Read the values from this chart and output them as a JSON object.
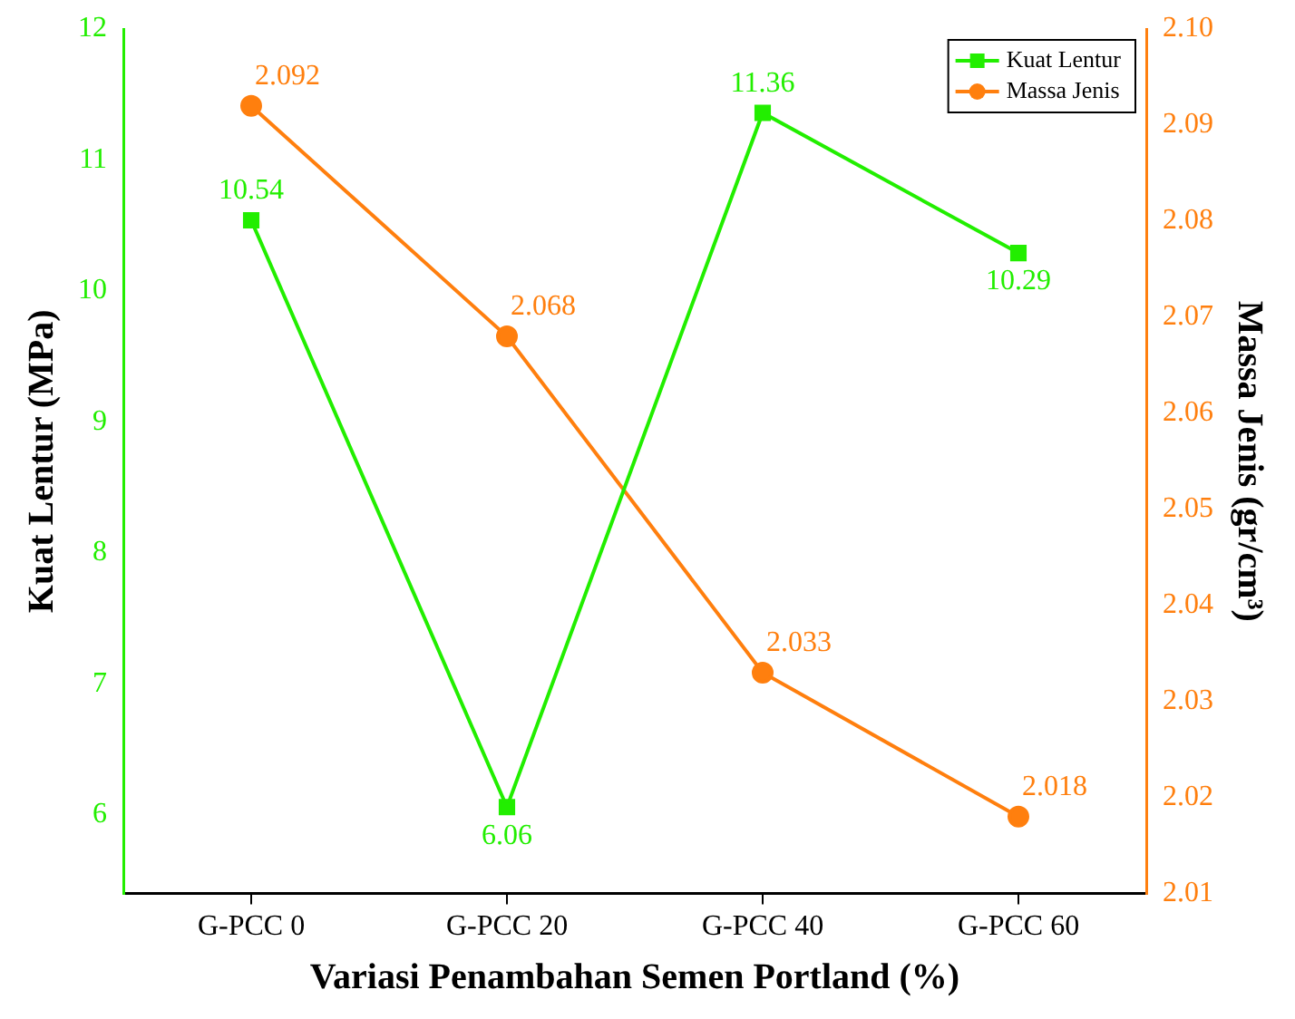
{
  "chart_data": {
    "type": "line",
    "xlabel": "Variasi Penambahan Semen Portland (%)",
    "ylabel": "Kuat Lentur (MPa)",
    "y2label": "Massa Jenis (gr/cm³)",
    "categories": [
      "G-PCC 0",
      "G-PCC 20",
      "G-PCC 40",
      "G-PCC 60"
    ],
    "series": [
      {
        "name": "Kuat Lentur",
        "color": "#22ee00",
        "values": [
          10.54,
          6.06,
          11.36,
          10.29
        ],
        "marker": "square"
      },
      {
        "name": "Massa Jenis",
        "color": "#ff7f0e",
        "values": [
          2.092,
          2.068,
          2.033,
          2.018
        ],
        "axis": "y2",
        "marker": "circle"
      }
    ],
    "ylim": [
      5.4,
      12
    ],
    "yticks": [
      6,
      7,
      8,
      9,
      10,
      11,
      12
    ],
    "y2lim": [
      2.01,
      2.1
    ],
    "y2ticks": [
      {
        "value": 2.01,
        "label": "2.01"
      },
      {
        "value": 2.02,
        "label": "2.02"
      },
      {
        "value": 2.03,
        "label": "2.03"
      },
      {
        "value": 2.04,
        "label": "2.04"
      },
      {
        "value": 2.05,
        "label": "2.05"
      },
      {
        "value": 2.06,
        "label": "2.06"
      },
      {
        "value": 2.07,
        "label": "2.07"
      },
      {
        "value": 2.08,
        "label": "2.08"
      },
      {
        "value": 2.09,
        "label": "2.09"
      },
      {
        "value": 2.1,
        "label": "2.10"
      }
    ],
    "data_labels": true,
    "legend": "top right",
    "grid": false,
    "line_style": "solid"
  }
}
